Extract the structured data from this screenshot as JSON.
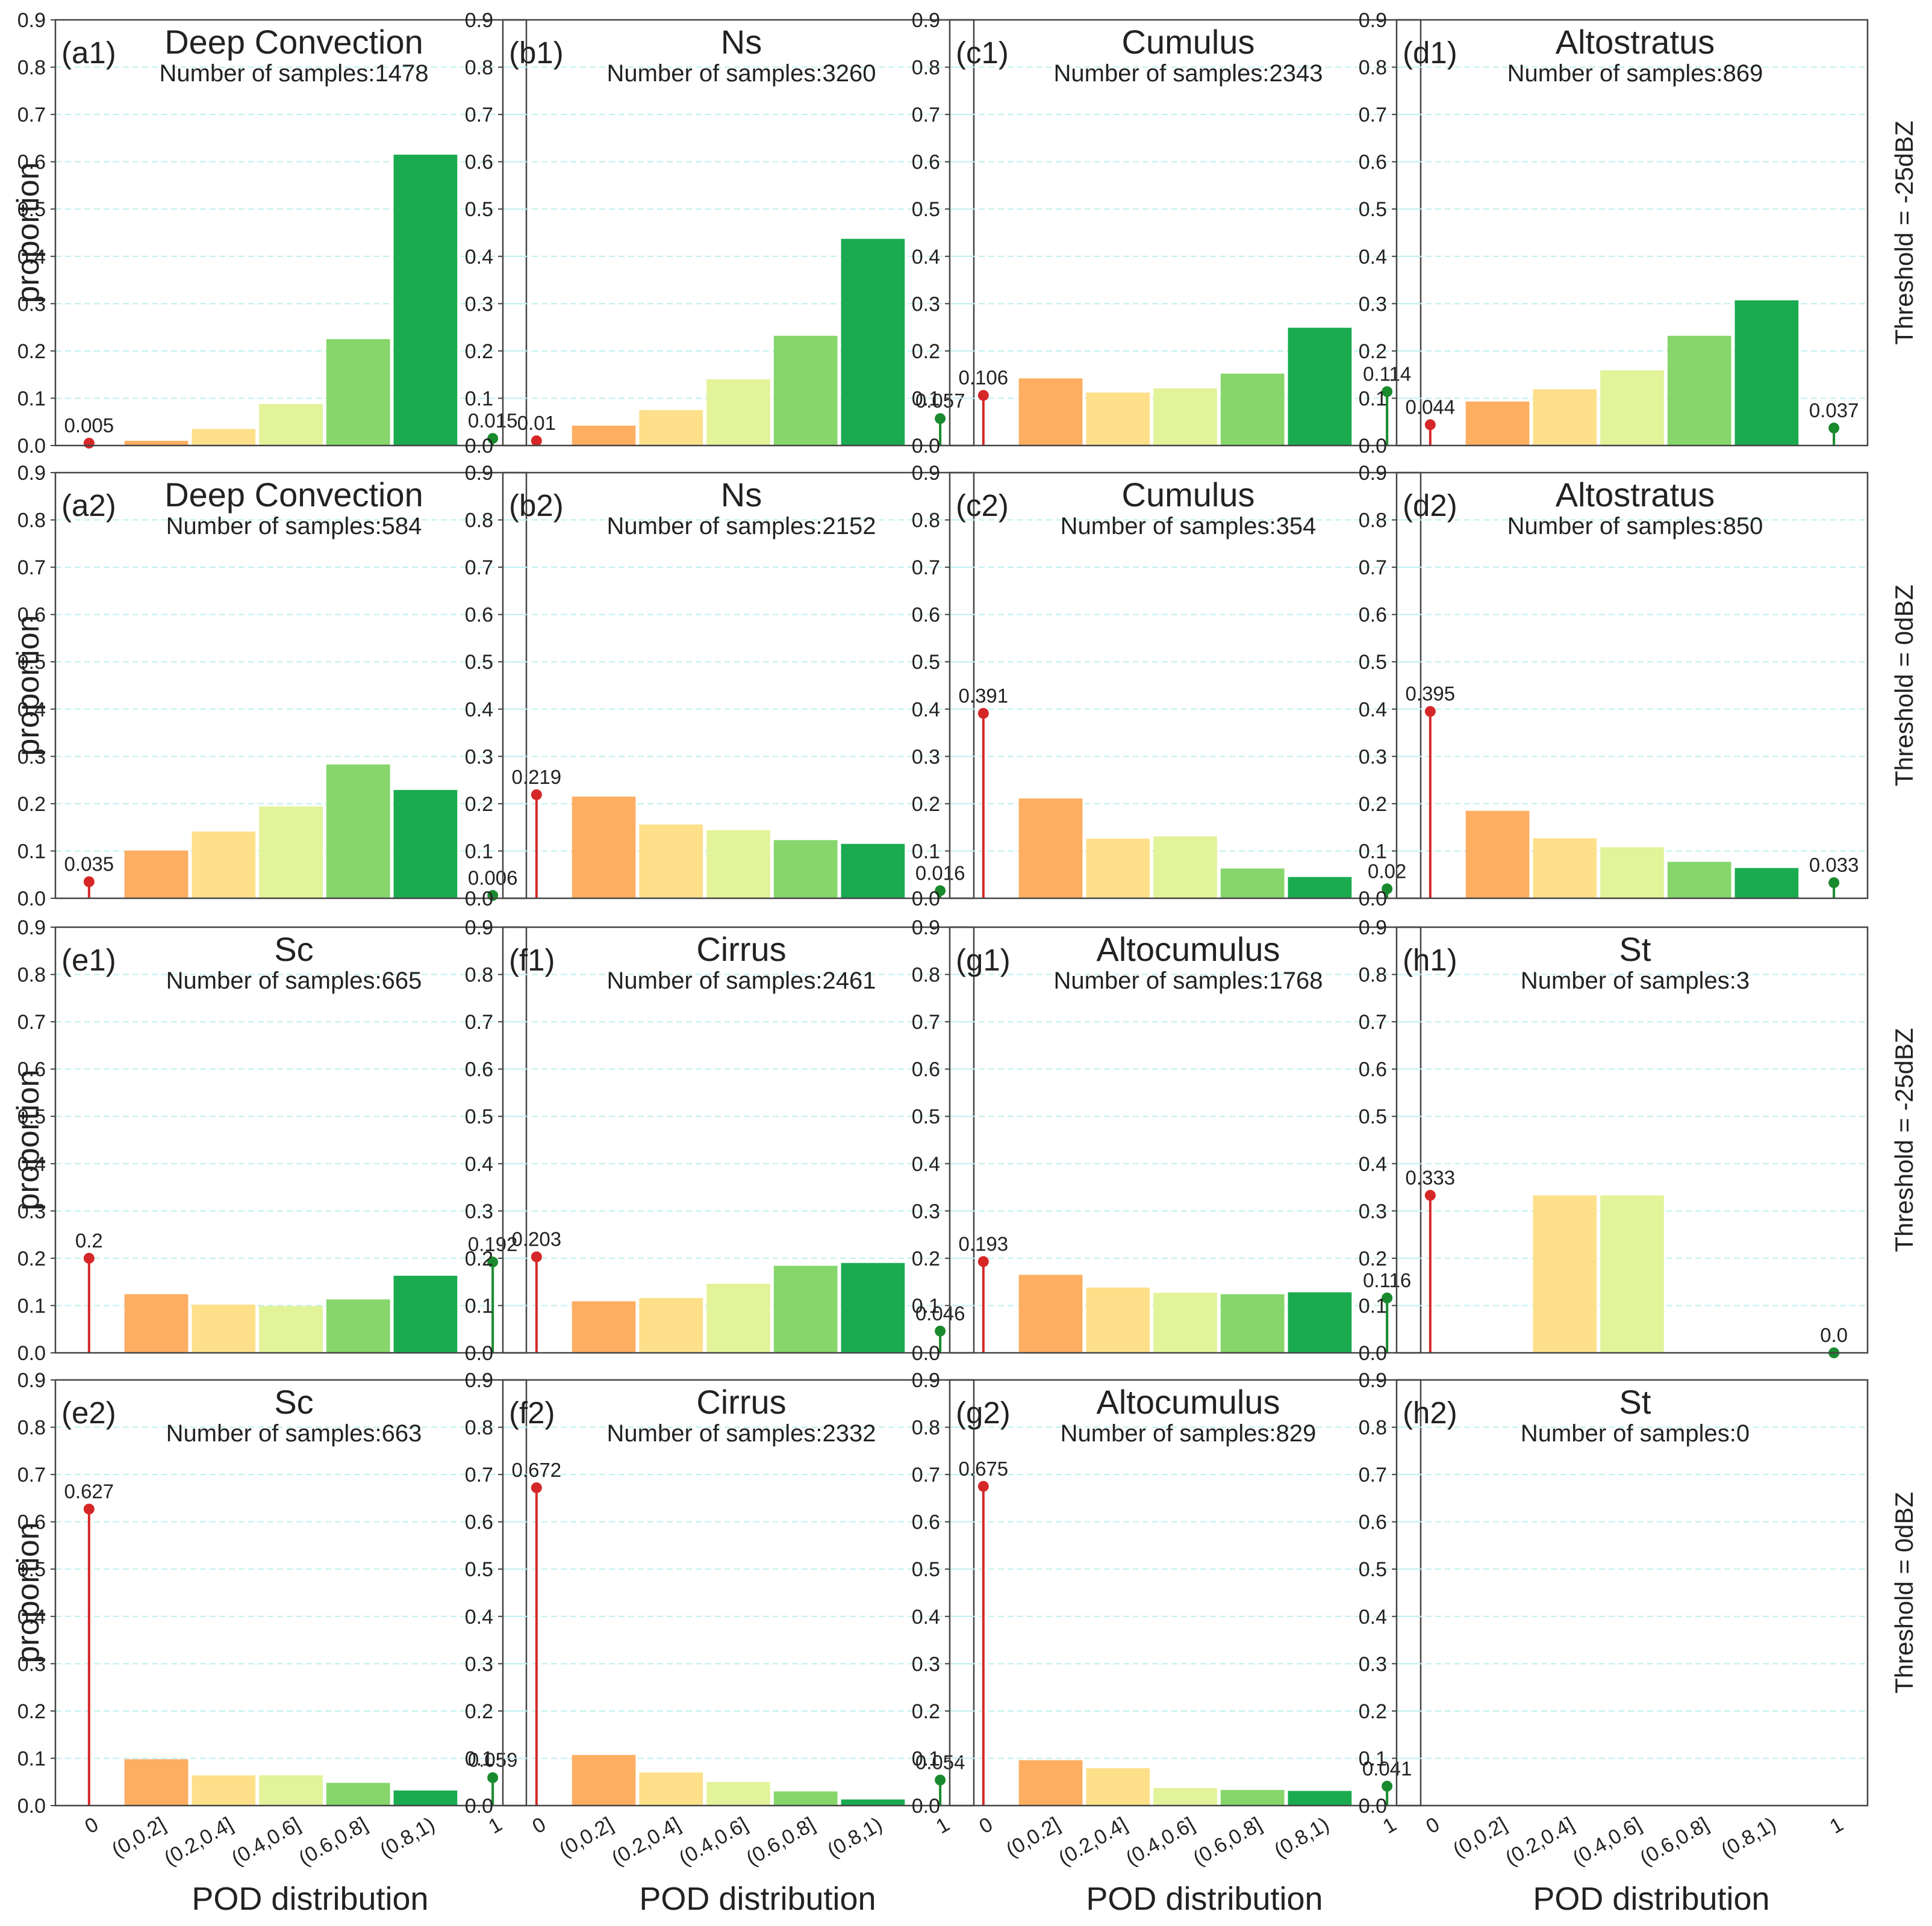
{
  "figure": {
    "y_axis_label": "proportion",
    "x_axis_label": "POD distribution",
    "row_labels": [
      "Threshold = -25dBZ",
      "Threshold = 0dBZ",
      "Threshold = -25dBZ",
      "Threshold = 0dBZ"
    ],
    "colors": {
      "bars": [
        "#FDAE61",
        "#FEE08B",
        "#E2F39A",
        "#86D66B",
        "#1AAB50"
      ],
      "stem_zero": "#D62728",
      "stem_one": "#1A8A2E",
      "grid": "#BFEFEF",
      "frame": "#444444"
    }
  },
  "chart_data": [
    {
      "id": "a1",
      "row": 0,
      "col": 0,
      "panel_label": "(a1)",
      "title": "Deep Convection",
      "subtitle": "Number of samples:1478",
      "type": "bar",
      "categories": [
        "0",
        "(0,0.2]",
        "(0.2,0.4]",
        "(0.4,0.6]",
        "(0.6,0.8]",
        "(0.8,1)",
        "1"
      ],
      "values": [
        0.005,
        0.01,
        0.035,
        0.088,
        0.225,
        0.615,
        0.015
      ],
      "stem_labels": [
        "0.005",
        "0.015"
      ],
      "ylim": [
        0,
        0.9
      ],
      "yticks": [
        "0.0",
        "0.1",
        "0.2",
        "0.3",
        "0.4",
        "0.5",
        "0.6",
        "0.7",
        "0.8",
        "0.9"
      ]
    },
    {
      "id": "b1",
      "row": 0,
      "col": 1,
      "panel_label": "(b1)",
      "title": "Ns",
      "subtitle": "Number of samples:3260",
      "type": "bar",
      "categories": [
        "0",
        "(0,0.2]",
        "(0.2,0.4]",
        "(0.4,0.6]",
        "(0.6,0.8]",
        "(0.8,1)",
        "1"
      ],
      "values": [
        0.01,
        0.042,
        0.075,
        0.14,
        0.232,
        0.437,
        0.057
      ],
      "stem_labels": [
        "0.01",
        "0.057"
      ],
      "ylim": [
        0,
        0.9
      ],
      "yticks": [
        "0.0",
        "0.1",
        "0.2",
        "0.3",
        "0.4",
        "0.5",
        "0.6",
        "0.7",
        "0.8",
        "0.9"
      ]
    },
    {
      "id": "c1",
      "row": 0,
      "col": 2,
      "panel_label": "(c1)",
      "title": "Cumulus",
      "subtitle": "Number of samples:2343",
      "type": "bar",
      "categories": [
        "0",
        "(0,0.2]",
        "(0.2,0.4]",
        "(0.4,0.6]",
        "(0.6,0.8]",
        "(0.8,1)",
        "1"
      ],
      "values": [
        0.106,
        0.142,
        0.112,
        0.121,
        0.152,
        0.249,
        0.114
      ],
      "stem_labels": [
        "0.106",
        "0.114"
      ],
      "ylim": [
        0,
        0.9
      ],
      "yticks": [
        "0.0",
        "0.1",
        "0.2",
        "0.3",
        "0.4",
        "0.5",
        "0.6",
        "0.7",
        "0.8",
        "0.9"
      ]
    },
    {
      "id": "d1",
      "row": 0,
      "col": 3,
      "panel_label": "(d1)",
      "title": "Altostratus",
      "subtitle": "Number of samples:869",
      "type": "bar",
      "categories": [
        "0",
        "(0,0.2]",
        "(0.2,0.4]",
        "(0.4,0.6]",
        "(0.6,0.8]",
        "(0.8,1)",
        "1"
      ],
      "values": [
        0.044,
        0.093,
        0.119,
        0.159,
        0.232,
        0.307,
        0.037
      ],
      "stem_labels": [
        "0.044",
        "0.037"
      ],
      "ylim": [
        0,
        0.9
      ],
      "yticks": [
        "0.0",
        "0.1",
        "0.2",
        "0.3",
        "0.4",
        "0.5",
        "0.6",
        "0.7",
        "0.8",
        "0.9"
      ]
    },
    {
      "id": "a2",
      "row": 1,
      "col": 0,
      "panel_label": "(a2)",
      "title": "Deep Convection",
      "subtitle": "Number of samples:584",
      "type": "bar",
      "categories": [
        "0",
        "(0,0.2]",
        "(0.2,0.4]",
        "(0.4,0.6]",
        "(0.6,0.8]",
        "(0.8,1)",
        "1"
      ],
      "values": [
        0.035,
        0.101,
        0.141,
        0.194,
        0.283,
        0.229,
        0.006
      ],
      "stem_labels": [
        "0.035",
        "0.006"
      ],
      "ylim": [
        0,
        0.9
      ],
      "yticks": [
        "0.0",
        "0.1",
        "0.2",
        "0.3",
        "0.4",
        "0.5",
        "0.6",
        "0.7",
        "0.8",
        "0.9"
      ]
    },
    {
      "id": "b2",
      "row": 1,
      "col": 1,
      "panel_label": "(b2)",
      "title": "Ns",
      "subtitle": "Number of samples:2152",
      "type": "bar",
      "categories": [
        "0",
        "(0,0.2]",
        "(0.2,0.4]",
        "(0.4,0.6]",
        "(0.6,0.8]",
        "(0.8,1)",
        "1"
      ],
      "values": [
        0.219,
        0.215,
        0.156,
        0.144,
        0.123,
        0.115,
        0.016
      ],
      "stem_labels": [
        "0.219",
        "0.016"
      ],
      "ylim": [
        0,
        0.9
      ],
      "yticks": [
        "0.0",
        "0.1",
        "0.2",
        "0.3",
        "0.4",
        "0.5",
        "0.6",
        "0.7",
        "0.8",
        "0.9"
      ]
    },
    {
      "id": "c2",
      "row": 1,
      "col": 2,
      "panel_label": "(c2)",
      "title": "Cumulus",
      "subtitle": "Number of samples:354",
      "type": "bar",
      "categories": [
        "0",
        "(0,0.2]",
        "(0.2,0.4]",
        "(0.4,0.6]",
        "(0.6,0.8]",
        "(0.8,1)",
        "1"
      ],
      "values": [
        0.391,
        0.211,
        0.126,
        0.131,
        0.063,
        0.045,
        0.02
      ],
      "stem_labels": [
        "0.391",
        "0.02"
      ],
      "ylim": [
        0,
        0.9
      ],
      "yticks": [
        "0.0",
        "0.1",
        "0.2",
        "0.3",
        "0.4",
        "0.5",
        "0.6",
        "0.7",
        "0.8",
        "0.9"
      ]
    },
    {
      "id": "d2",
      "row": 1,
      "col": 3,
      "panel_label": "(d2)",
      "title": "Altostratus",
      "subtitle": "Number of samples:850",
      "type": "bar",
      "categories": [
        "0",
        "(0,0.2]",
        "(0.2,0.4]",
        "(0.4,0.6]",
        "(0.6,0.8]",
        "(0.8,1)",
        "1"
      ],
      "values": [
        0.395,
        0.185,
        0.127,
        0.108,
        0.077,
        0.064,
        0.033
      ],
      "stem_labels": [
        "0.395",
        "0.033"
      ],
      "ylim": [
        0,
        0.9
      ],
      "yticks": [
        "0.0",
        "0.1",
        "0.2",
        "0.3",
        "0.4",
        "0.5",
        "0.6",
        "0.7",
        "0.8",
        "0.9"
      ]
    },
    {
      "id": "e1",
      "row": 2,
      "col": 0,
      "panel_label": "(e1)",
      "title": "Sc",
      "subtitle": "Number of samples:665",
      "type": "bar",
      "categories": [
        "0",
        "(0,0.2]",
        "(0.2,0.4]",
        "(0.4,0.6]",
        "(0.6,0.8]",
        "(0.8,1)",
        "1"
      ],
      "values": [
        0.2,
        0.124,
        0.102,
        0.099,
        0.113,
        0.163,
        0.192
      ],
      "stem_labels": [
        "0.2",
        "0.192"
      ],
      "ylim": [
        0,
        0.9
      ],
      "yticks": [
        "0.0",
        "0.1",
        "0.2",
        "0.3",
        "0.4",
        "0.5",
        "0.6",
        "0.7",
        "0.8",
        "0.9"
      ]
    },
    {
      "id": "f1",
      "row": 2,
      "col": 1,
      "panel_label": "(f1)",
      "title": "Cirrus",
      "subtitle": "Number of samples:2461",
      "type": "bar",
      "categories": [
        "0",
        "(0,0.2]",
        "(0.2,0.4]",
        "(0.4,0.6]",
        "(0.6,0.8]",
        "(0.8,1)",
        "1"
      ],
      "values": [
        0.203,
        0.109,
        0.116,
        0.146,
        0.184,
        0.19,
        0.046
      ],
      "stem_labels": [
        "0.203",
        "0.046"
      ],
      "ylim": [
        0,
        0.9
      ],
      "yticks": [
        "0.0",
        "0.1",
        "0.2",
        "0.3",
        "0.4",
        "0.5",
        "0.6",
        "0.7",
        "0.8",
        "0.9"
      ]
    },
    {
      "id": "g1",
      "row": 2,
      "col": 2,
      "panel_label": "(g1)",
      "title": "Altocumulus",
      "subtitle": "Number of samples:1768",
      "type": "bar",
      "categories": [
        "0",
        "(0,0.2]",
        "(0.2,0.4]",
        "(0.4,0.6]",
        "(0.6,0.8]",
        "(0.8,1)",
        "1"
      ],
      "values": [
        0.193,
        0.165,
        0.138,
        0.127,
        0.124,
        0.128,
        0.116
      ],
      "stem_labels": [
        "0.193",
        "0.116"
      ],
      "ylim": [
        0,
        0.9
      ],
      "yticks": [
        "0.0",
        "0.1",
        "0.2",
        "0.3",
        "0.4",
        "0.5",
        "0.6",
        "0.7",
        "0.8",
        "0.9"
      ]
    },
    {
      "id": "h1",
      "row": 2,
      "col": 3,
      "panel_label": "(h1)",
      "title": "St",
      "subtitle": "Number of samples:3",
      "type": "bar",
      "categories": [
        "0",
        "(0,0.2]",
        "(0.2,0.4]",
        "(0.4,0.6]",
        "(0.6,0.8]",
        "(0.8,1)",
        "1"
      ],
      "values": [
        0.333,
        0.0,
        0.333,
        0.333,
        0.0,
        0.0,
        0.0
      ],
      "stem_labels": [
        "0.333",
        "0.0"
      ],
      "ylim": [
        0,
        0.9
      ],
      "yticks": [
        "0.0",
        "0.1",
        "0.2",
        "0.3",
        "0.4",
        "0.5",
        "0.6",
        "0.7",
        "0.8",
        "0.9"
      ]
    },
    {
      "id": "e2",
      "row": 3,
      "col": 0,
      "panel_label": "(e2)",
      "title": "Sc",
      "subtitle": "Number of samples:663",
      "type": "bar",
      "categories": [
        "0",
        "(0,0.2]",
        "(0.2,0.4]",
        "(0.4,0.6]",
        "(0.6,0.8]",
        "(0.8,1)",
        "1"
      ],
      "values": [
        0.627,
        0.098,
        0.064,
        0.064,
        0.048,
        0.032,
        0.059
      ],
      "stem_labels": [
        "0.627",
        "0.059"
      ],
      "ylim": [
        0,
        0.9
      ],
      "yticks": [
        "0.0",
        "0.1",
        "0.2",
        "0.3",
        "0.4",
        "0.5",
        "0.6",
        "0.7",
        "0.8",
        "0.9"
      ]
    },
    {
      "id": "f2",
      "row": 3,
      "col": 1,
      "panel_label": "(f2)",
      "title": "Cirrus",
      "subtitle": "Number of samples:2332",
      "type": "bar",
      "categories": [
        "0",
        "(0,0.2]",
        "(0.2,0.4]",
        "(0.4,0.6]",
        "(0.6,0.8]",
        "(0.8,1)",
        "1"
      ],
      "values": [
        0.672,
        0.107,
        0.07,
        0.05,
        0.03,
        0.013,
        0.054
      ],
      "stem_labels": [
        "0.672",
        "0.054"
      ],
      "ylim": [
        0,
        0.9
      ],
      "yticks": [
        "0.0",
        "0.1",
        "0.2",
        "0.3",
        "0.4",
        "0.5",
        "0.6",
        "0.7",
        "0.8",
        "0.9"
      ]
    },
    {
      "id": "g2",
      "row": 3,
      "col": 2,
      "panel_label": "(g2)",
      "title": "Altocumulus",
      "subtitle": "Number of samples:829",
      "type": "bar",
      "categories": [
        "0",
        "(0,0.2]",
        "(0.2,0.4]",
        "(0.4,0.6]",
        "(0.6,0.8]",
        "(0.8,1)",
        "1"
      ],
      "values": [
        0.675,
        0.096,
        0.079,
        0.037,
        0.033,
        0.031,
        0.041
      ],
      "stem_labels": [
        "0.675",
        "0.041"
      ],
      "ylim": [
        0,
        0.9
      ],
      "yticks": [
        "0.0",
        "0.1",
        "0.2",
        "0.3",
        "0.4",
        "0.5",
        "0.6",
        "0.7",
        "0.8",
        "0.9"
      ]
    },
    {
      "id": "h2",
      "row": 3,
      "col": 3,
      "panel_label": "(h2)",
      "title": "St",
      "subtitle": "Number of samples:0",
      "type": "bar",
      "categories": [
        "0",
        "(0,0.2]",
        "(0.2,0.4]",
        "(0.4,0.6]",
        "(0.6,0.8]",
        "(0.8,1)",
        "1"
      ],
      "values": [
        null,
        null,
        null,
        null,
        null,
        null,
        null
      ],
      "stem_labels": [
        "",
        ""
      ],
      "ylim": [
        0,
        0.9
      ],
      "yticks": [
        "0.0",
        "0.1",
        "0.2",
        "0.3",
        "0.4",
        "0.5",
        "0.6",
        "0.7",
        "0.8",
        "0.9"
      ]
    }
  ]
}
